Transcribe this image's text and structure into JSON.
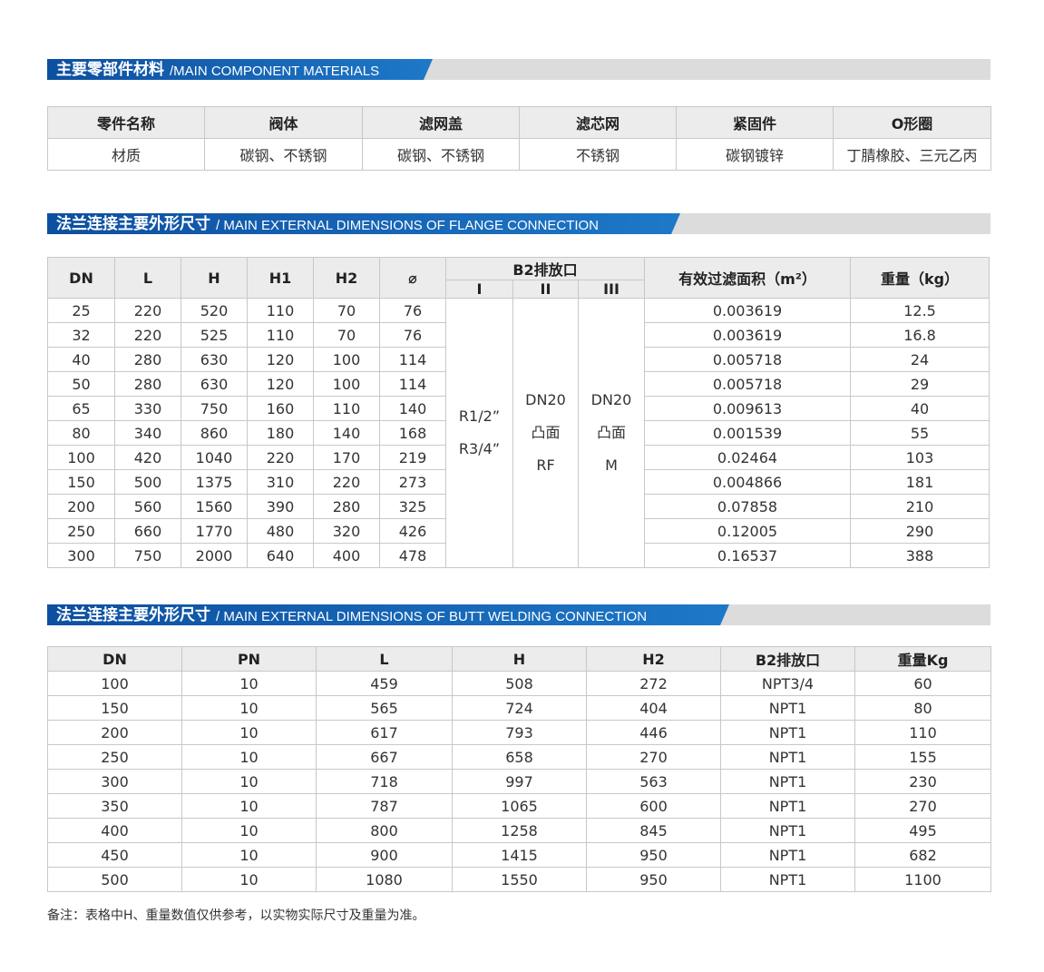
{
  "materials": {
    "title_cn": "主要零部件材料",
    "title_en": "/MAIN COMPONENT MATERIALS",
    "headers": [
      "零件名称",
      "阀体",
      "滤网盖",
      "滤芯网",
      "紧固件",
      "O形圈"
    ],
    "row": [
      "材质",
      "碳钢、不锈钢",
      "碳钢、不锈钢",
      "不锈钢",
      "碳钢镀锌",
      "丁腈橡胶、三元乙丙"
    ]
  },
  "flange": {
    "title_cn": "法兰连接主要外形尺寸",
    "title_en": "/ MAIN EXTERNAL DIMENSIONS OF FLANGE CONNECTION",
    "headers": [
      "DN",
      "L",
      "H",
      "H1",
      "H2",
      "⌀",
      "B2排放口",
      "有效过滤面积（m²）",
      "重量（kg）"
    ],
    "sub_headers": [
      "I",
      "II",
      "III"
    ],
    "b2": {
      "I": [
        "R1/2”",
        "R3/4”"
      ],
      "II": [
        "DN20",
        "凸面",
        "RF"
      ],
      "III": [
        "DN20",
        "凸面",
        "M"
      ]
    },
    "rows": [
      [
        "25",
        "220",
        "520",
        "110",
        "70",
        "76",
        "0.003619",
        "12.5"
      ],
      [
        "32",
        "220",
        "525",
        "110",
        "70",
        "76",
        "0.003619",
        "16.8"
      ],
      [
        "40",
        "280",
        "630",
        "120",
        "100",
        "114",
        "0.005718",
        "24"
      ],
      [
        "50",
        "280",
        "630",
        "120",
        "100",
        "114",
        "0.005718",
        "29"
      ],
      [
        "65",
        "330",
        "750",
        "160",
        "110",
        "140",
        "0.009613",
        "40"
      ],
      [
        "80",
        "340",
        "860",
        "180",
        "140",
        "168",
        "0.001539",
        "55"
      ],
      [
        "100",
        "420",
        "1040",
        "220",
        "170",
        "219",
        "0.02464",
        "103"
      ],
      [
        "150",
        "500",
        "1375",
        "310",
        "220",
        "273",
        "0.004866",
        "181"
      ],
      [
        "200",
        "560",
        "1560",
        "390",
        "280",
        "325",
        "0.07858",
        "210"
      ],
      [
        "250",
        "660",
        "1770",
        "480",
        "320",
        "426",
        "0.12005",
        "290"
      ],
      [
        "300",
        "750",
        "2000",
        "640",
        "400",
        "478",
        "0.16537",
        "388"
      ]
    ]
  },
  "butt": {
    "title_cn": "法兰连接主要外形尺寸",
    "title_en": "/ MAIN EXTERNAL DIMENSIONS OF BUTT WELDING CONNECTION",
    "headers": [
      "DN",
      "PN",
      "L",
      "H",
      "H2",
      "B2排放口",
      "重量Kg"
    ],
    "rows": [
      [
        "100",
        "10",
        "459",
        "508",
        "272",
        "NPT3/4",
        "60"
      ],
      [
        "150",
        "10",
        "565",
        "724",
        "404",
        "NPT1",
        "80"
      ],
      [
        "200",
        "10",
        "617",
        "793",
        "446",
        "NPT1",
        "110"
      ],
      [
        "250",
        "10",
        "667",
        "658",
        "270",
        "NPT1",
        "155"
      ],
      [
        "300",
        "10",
        "718",
        "997",
        "563",
        "NPT1",
        "230"
      ],
      [
        "350",
        "10",
        "787",
        "1065",
        "600",
        "NPT1",
        "270"
      ],
      [
        "400",
        "10",
        "800",
        "1258",
        "845",
        "NPT1",
        "495"
      ],
      [
        "450",
        "10",
        "900",
        "1415",
        "950",
        "NPT1",
        "682"
      ],
      [
        "500",
        "10",
        "1080",
        "1550",
        "950",
        "NPT1",
        "1100"
      ]
    ]
  },
  "note": "备注：表格中H、重量数值仅供参考，以实物实际尺寸及重量为准。"
}
